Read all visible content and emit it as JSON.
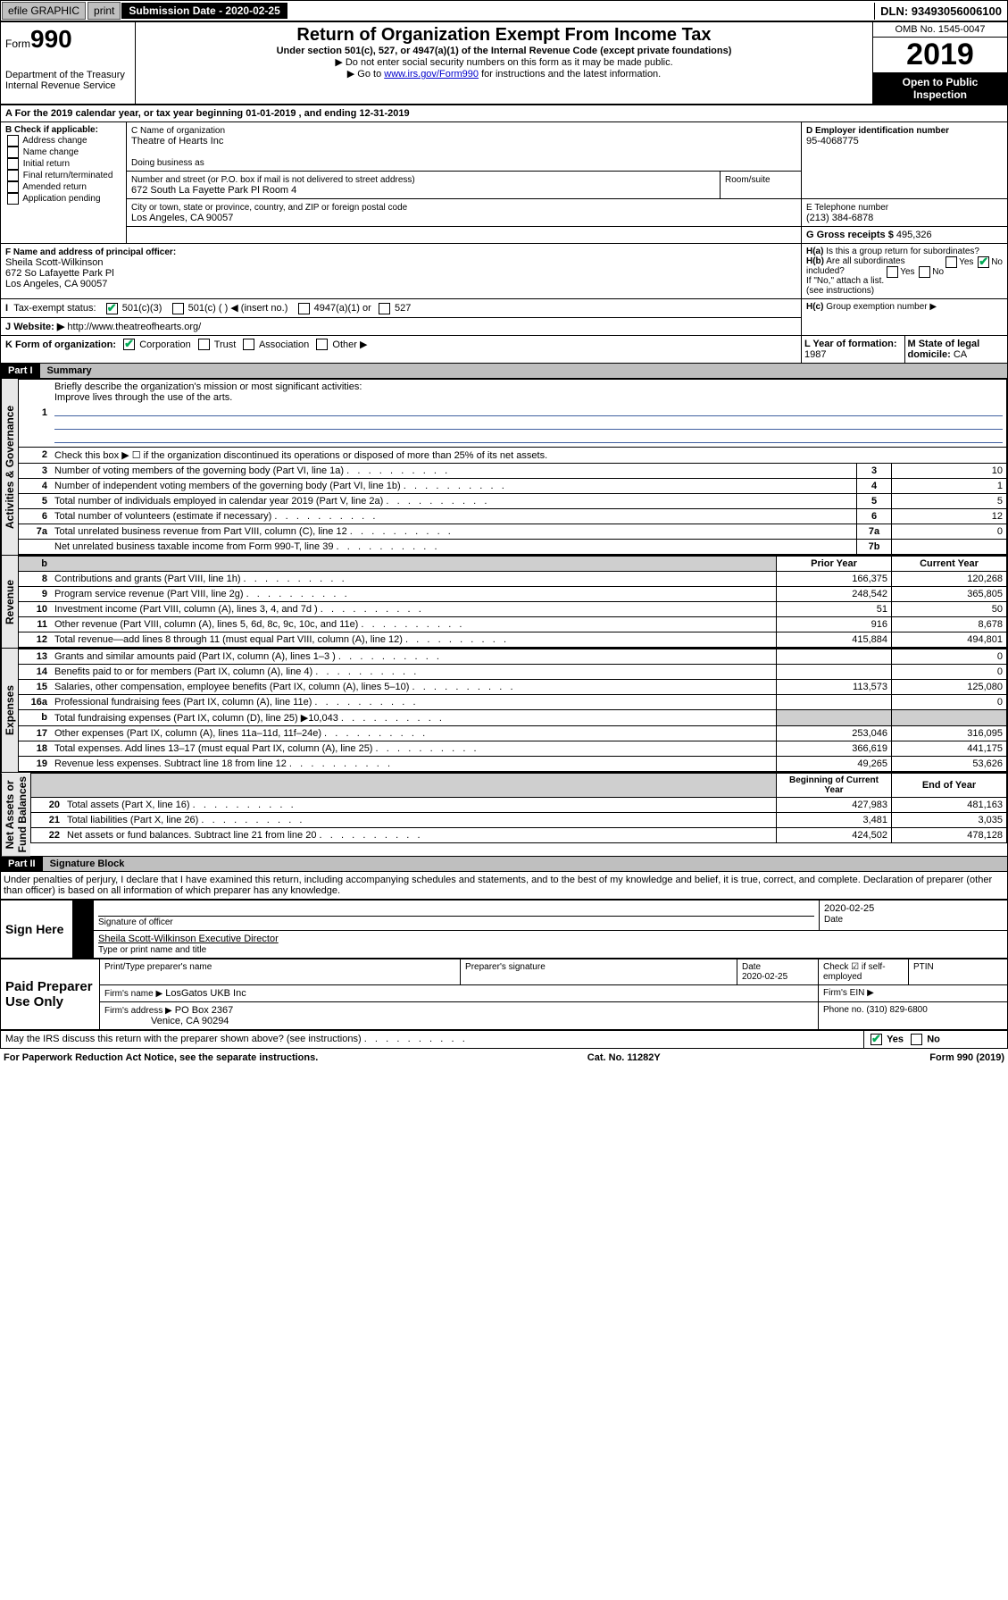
{
  "topbar": {
    "efile": "efile GRAPHIC",
    "print": "print",
    "sub_label": "Submission Date - 2020-02-25",
    "dln": "DLN: 93493056006100"
  },
  "header": {
    "form_label": "Form",
    "form_no": "990",
    "title": "Return of Organization Exempt From Income Tax",
    "sub1": "Under section 501(c), 527, or 4947(a)(1) of the Internal Revenue Code (except private foundations)",
    "sub2": "▶ Do not enter social security numbers on this form as it may be made public.",
    "sub3_pre": "▶ Go to ",
    "sub3_link": "www.irs.gov/Form990",
    "sub3_post": " for instructions and the latest information.",
    "dept": "Department of the Treasury\nInternal Revenue Service",
    "omb": "OMB No. 1545-0047",
    "year": "2019",
    "open": "Open to Public Inspection"
  },
  "periodA": {
    "pre": "For the 2019 calendar year, or tax year beginning ",
    "begin": "01-01-2019",
    "mid": " , and ending ",
    "end": "12-31-2019"
  },
  "boxB": {
    "label": "B Check if applicable:",
    "opts": [
      "Address change",
      "Name change",
      "Initial return",
      "Final return/terminated",
      "Amended return",
      "Application pending"
    ]
  },
  "boxC": {
    "label": "C Name of organization",
    "name": "Theatre of Hearts Inc",
    "dba_label": "Doing business as",
    "dba": "",
    "addr_label": "Number and street (or P.O. box if mail is not delivered to street address)",
    "addr": "672 South La Fayette Park Pl Room 4",
    "room_label": "Room/suite",
    "city_label": "City or town, state or province, country, and ZIP or foreign postal code",
    "city": "Los Angeles, CA  90057"
  },
  "boxD": {
    "label": "D Employer identification number",
    "val": "95-4068775"
  },
  "boxE": {
    "label": "E Telephone number",
    "val": "(213) 384-6878"
  },
  "boxG": {
    "label": "G Gross receipts $ ",
    "val": "495,326"
  },
  "boxF": {
    "label": "F Name and address of principal officer:",
    "name": "Sheila Scott-Wilkinson",
    "addr1": "672 So Lafayette Park Pl",
    "addr2": "Los Angeles, CA  90057"
  },
  "boxH": {
    "a_label": "H(a)",
    "a_text": "Is this a group return for subordinates?",
    "a_yes": "Yes",
    "a_no": "No",
    "b_label": "H(b)",
    "b_text": "Are all subordinates included?",
    "b_note": "If \"No,\" attach a list. (see instructions)",
    "c_label": "H(c)",
    "c_text": "Group exemption number ▶"
  },
  "rowI": {
    "label": "I",
    "text": "Tax-exempt status:",
    "o1": "501(c)(3)",
    "o2": "501(c) (  ) ◀ (insert no.)",
    "o3": "4947(a)(1) or",
    "o4": "527"
  },
  "rowJ": {
    "label": "J",
    "text": "Website: ▶",
    "url": "http://www.theatreofhearts.org/"
  },
  "rowK": {
    "label": "K Form of organization:",
    "opts": [
      "Corporation",
      "Trust",
      "Association",
      "Other ▶"
    ]
  },
  "rowL": {
    "label": "L Year of formation: ",
    "val": "1987"
  },
  "rowM": {
    "label": "M State of legal domicile: ",
    "val": "CA"
  },
  "part1": {
    "label": "Part I",
    "title": "Summary"
  },
  "p1": {
    "l1": "Briefly describe the organization's mission or most significant activities:",
    "l1_text": "Improve lives through the use of the arts.",
    "l2": "Check this box ▶ ☐ if the organization discontinued its operations or disposed of more than 25% of its net assets.",
    "rows_ag": [
      {
        "n": "3",
        "d": "Number of voting members of the governing body (Part VI, line 1a)",
        "b": "3",
        "v": "10"
      },
      {
        "n": "4",
        "d": "Number of independent voting members of the governing body (Part VI, line 1b)",
        "b": "4",
        "v": "1"
      },
      {
        "n": "5",
        "d": "Total number of individuals employed in calendar year 2019 (Part V, line 2a)",
        "b": "5",
        "v": "5"
      },
      {
        "n": "6",
        "d": "Total number of volunteers (estimate if necessary)",
        "b": "6",
        "v": "12"
      },
      {
        "n": "7a",
        "d": "Total unrelated business revenue from Part VIII, column (C), line 12",
        "b": "7a",
        "v": "0"
      },
      {
        "n": "",
        "d": "Net unrelated business taxable income from Form 990-T, line 39",
        "b": "7b",
        "v": ""
      }
    ],
    "col_hdr": {
      "n": "b",
      "prior": "Prior Year",
      "curr": "Current Year"
    },
    "rev": [
      {
        "n": "8",
        "d": "Contributions and grants (Part VIII, line 1h)",
        "p": "166,375",
        "c": "120,268"
      },
      {
        "n": "9",
        "d": "Program service revenue (Part VIII, line 2g)",
        "p": "248,542",
        "c": "365,805"
      },
      {
        "n": "10",
        "d": "Investment income (Part VIII, column (A), lines 3, 4, and 7d )",
        "p": "51",
        "c": "50"
      },
      {
        "n": "11",
        "d": "Other revenue (Part VIII, column (A), lines 5, 6d, 8c, 9c, 10c, and 11e)",
        "p": "916",
        "c": "8,678"
      },
      {
        "n": "12",
        "d": "Total revenue—add lines 8 through 11 (must equal Part VIII, column (A), line 12)",
        "p": "415,884",
        "c": "494,801"
      }
    ],
    "exp": [
      {
        "n": "13",
        "d": "Grants and similar amounts paid (Part IX, column (A), lines 1–3 )",
        "p": "",
        "c": "0"
      },
      {
        "n": "14",
        "d": "Benefits paid to or for members (Part IX, column (A), line 4)",
        "p": "",
        "c": "0"
      },
      {
        "n": "15",
        "d": "Salaries, other compensation, employee benefits (Part IX, column (A), lines 5–10)",
        "p": "113,573",
        "c": "125,080"
      },
      {
        "n": "16a",
        "d": "Professional fundraising fees (Part IX, column (A), line 11e)",
        "p": "",
        "c": "0"
      },
      {
        "n": "b",
        "d": "Total fundraising expenses (Part IX, column (D), line 25) ▶10,043",
        "p": "-shade-",
        "c": "-shade-"
      },
      {
        "n": "17",
        "d": "Other expenses (Part IX, column (A), lines 11a–11d, 11f–24e)",
        "p": "253,046",
        "c": "316,095"
      },
      {
        "n": "18",
        "d": "Total expenses. Add lines 13–17 (must equal Part IX, column (A), line 25)",
        "p": "366,619",
        "c": "441,175"
      },
      {
        "n": "19",
        "d": "Revenue less expenses. Subtract line 18 from line 12",
        "p": "49,265",
        "c": "53,626"
      }
    ],
    "na_hdr": {
      "p": "Beginning of Current Year",
      "c": "End of Year"
    },
    "na": [
      {
        "n": "20",
        "d": "Total assets (Part X, line 16)",
        "p": "427,983",
        "c": "481,163"
      },
      {
        "n": "21",
        "d": "Total liabilities (Part X, line 26)",
        "p": "3,481",
        "c": "3,035"
      },
      {
        "n": "22",
        "d": "Net assets or fund balances. Subtract line 21 from line 20",
        "p": "424,502",
        "c": "478,128"
      }
    ]
  },
  "part2": {
    "label": "Part II",
    "title": "Signature Block",
    "decl": "Under penalties of perjury, I declare that I have examined this return, including accompanying schedules and statements, and to the best of my knowledge and belief, it is true, correct, and complete. Declaration of preparer (other than officer) is based on all information of which preparer has any knowledge."
  },
  "sign": {
    "here": "Sign Here",
    "sig_officer": "Signature of officer",
    "date_label": "Date",
    "date": "2020-02-25",
    "name": "Sheila Scott-Wilkinson  Executive Director",
    "name_label": "Type or print name and title"
  },
  "paid": {
    "label": "Paid Preparer Use Only",
    "c1": "Print/Type preparer's name",
    "c2": "Preparer's signature",
    "c3": "Date",
    "c3v": "2020-02-25",
    "c4": "Check ☑ if self-employed",
    "c5": "PTIN",
    "firm_name_label": "Firm's name  ▶",
    "firm_name": "LosGatos UKB Inc",
    "firm_ein": "Firm's EIN ▶",
    "firm_addr_label": "Firm's address ▶",
    "firm_addr": "PO Box 2367",
    "firm_city": "Venice, CA  90294",
    "firm_phone_label": "Phone no. ",
    "firm_phone": "(310) 829-6800"
  },
  "discuss": {
    "text": "May the IRS discuss this return with the preparer shown above? (see instructions)",
    "yes": "Yes",
    "no": "No"
  },
  "footer": {
    "pra": "For Paperwork Reduction Act Notice, see the separate instructions.",
    "cat": "Cat. No. 11282Y",
    "form": "Form 990 (2019)"
  },
  "vlabels": {
    "ag": "Activities & Governance",
    "rev": "Revenue",
    "exp": "Expenses",
    "na": "Net Assets or\nFund Balances"
  }
}
